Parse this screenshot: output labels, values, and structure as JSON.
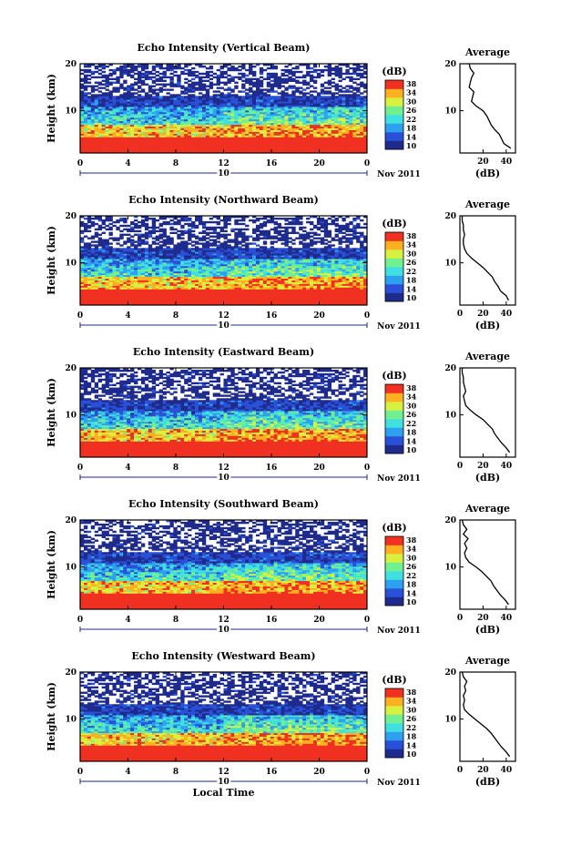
{
  "chart_data": [
    {
      "type": "heatmap",
      "title": "Echo Intensity (Vertical Beam)",
      "ylabel": "Height (km)",
      "y_ticks": [
        "20",
        "10"
      ],
      "x_ticks": [
        "0",
        "4",
        "8",
        "12",
        "16",
        "20",
        "0"
      ],
      "date_day": "10",
      "date_month": "Nov 2011",
      "ylim": [
        1,
        20
      ],
      "xlim": [
        0,
        24
      ],
      "colorbar_unit": "(dB)",
      "colorbar_ticks": [
        "38",
        "34",
        "30",
        "26",
        "22",
        "18",
        "14",
        "10"
      ],
      "zlim": [
        10,
        40
      ],
      "avg_title": "Average",
      "avg_xlabel": "(dB)",
      "avg_x_ticks": [
        "20",
        "40"
      ],
      "avg_y_ticks": [
        "20",
        "10"
      ],
      "avg_profile": {
        "height": [
          2,
          3,
          4,
          5,
          6,
          7,
          8,
          9,
          10,
          11,
          12,
          13,
          14,
          15,
          16,
          17,
          18,
          19,
          20
        ],
        "db": [
          44,
          38,
          36,
          34,
          30,
          27,
          25,
          23,
          20,
          14,
          10,
          11,
          12,
          8,
          9,
          10,
          12,
          9,
          8
        ]
      }
    },
    {
      "type": "heatmap",
      "title": "Echo Intensity (Northward Beam)",
      "ylabel": "Height (km)",
      "y_ticks": [
        "20",
        "10"
      ],
      "x_ticks": [
        "0",
        "4",
        "8",
        "12",
        "16",
        "20",
        "0"
      ],
      "date_day": "10",
      "date_month": "Nov 2011",
      "ylim": [
        1,
        20
      ],
      "xlim": [
        0,
        24
      ],
      "colorbar_unit": "(dB)",
      "colorbar_ticks": [
        "38",
        "34",
        "30",
        "26",
        "22",
        "18",
        "14",
        "10"
      ],
      "zlim": [
        10,
        40
      ],
      "avg_title": "Average",
      "avg_xlabel": "(dB)",
      "avg_x_ticks": [
        "0",
        "20",
        "40"
      ],
      "avg_y_ticks": [
        "20",
        "10"
      ],
      "avg_profile": {
        "height": [
          2,
          3,
          4,
          5,
          6,
          7,
          8,
          9,
          10,
          11,
          12,
          13,
          14,
          15,
          16,
          17,
          18,
          19,
          20
        ],
        "db": [
          42,
          40,
          35,
          33,
          30,
          28,
          24,
          20,
          15,
          10,
          6,
          4,
          3,
          3,
          4,
          3,
          3,
          2,
          2
        ]
      }
    },
    {
      "type": "heatmap",
      "title": "Echo Intensity (Eastward Beam)",
      "ylabel": "Height (km)",
      "y_ticks": [
        "20",
        "10"
      ],
      "x_ticks": [
        "0",
        "4",
        "8",
        "12",
        "16",
        "20",
        "0"
      ],
      "date_day": "10",
      "date_month": "Nov 2011",
      "ylim": [
        1,
        20
      ],
      "xlim": [
        0,
        24
      ],
      "colorbar_unit": "(dB)",
      "colorbar_ticks": [
        "38",
        "34",
        "30",
        "26",
        "22",
        "18",
        "14",
        "10"
      ],
      "zlim": [
        10,
        40
      ],
      "avg_title": "Average",
      "avg_xlabel": "(dB)",
      "avg_x_ticks": [
        "0",
        "20",
        "40"
      ],
      "avg_y_ticks": [
        "20",
        "10"
      ],
      "avg_profile": {
        "height": [
          2,
          3,
          4,
          5,
          6,
          7,
          8,
          9,
          10,
          11,
          12,
          13,
          14,
          15,
          16,
          17,
          18,
          19,
          20
        ],
        "db": [
          43,
          40,
          36,
          33,
          30,
          28,
          24,
          20,
          14,
          9,
          5,
          4,
          3,
          5,
          4,
          3,
          3,
          2,
          2
        ]
      }
    },
    {
      "type": "heatmap",
      "title": "Echo Intensity (Southward Beam)",
      "ylabel": "Height (km)",
      "y_ticks": [
        "20",
        "10"
      ],
      "x_ticks": [
        "0",
        "4",
        "8",
        "12",
        "16",
        "20",
        "0"
      ],
      "date_day": "10",
      "date_month": "Nov 2011",
      "ylim": [
        1,
        20
      ],
      "xlim": [
        0,
        24
      ],
      "colorbar_unit": "(dB)",
      "colorbar_ticks": [
        "38",
        "34",
        "30",
        "26",
        "22",
        "18",
        "14",
        "10"
      ],
      "zlim": [
        10,
        40
      ],
      "avg_title": "Average",
      "avg_xlabel": "(dB)",
      "avg_x_ticks": [
        "0",
        "20",
        "40"
      ],
      "avg_y_ticks": [
        "20",
        "10"
      ],
      "avg_profile": {
        "height": [
          2,
          3,
          4,
          5,
          6,
          7,
          8,
          9,
          10,
          11,
          12,
          13,
          14,
          15,
          16,
          17,
          18,
          19,
          20
        ],
        "db": [
          42,
          39,
          35,
          32,
          29,
          27,
          23,
          19,
          14,
          8,
          5,
          4,
          6,
          4,
          7,
          3,
          6,
          3,
          2
        ]
      }
    },
    {
      "type": "heatmap",
      "title": "Echo Intensity (Westward Beam)",
      "ylabel": "Height (km)",
      "y_ticks": [
        "20",
        "10"
      ],
      "x_ticks": [
        "0",
        "4",
        "8",
        "12",
        "16",
        "20",
        "0"
      ],
      "date_day": "10",
      "date_month": "Nov 2011",
      "xlabel": "Local Time",
      "ylim": [
        1,
        20
      ],
      "xlim": [
        0,
        24
      ],
      "colorbar_unit": "(dB)",
      "colorbar_ticks": [
        "38",
        "34",
        "30",
        "26",
        "22",
        "18",
        "14",
        "10"
      ],
      "zlim": [
        10,
        40
      ],
      "avg_title": "Average",
      "avg_xlabel": "(dB)",
      "avg_x_ticks": [
        "0",
        "20",
        "40"
      ],
      "avg_y_ticks": [
        "20",
        "10"
      ],
      "avg_profile": {
        "height": [
          2,
          3,
          4,
          5,
          6,
          7,
          8,
          9,
          10,
          11,
          12,
          13,
          14,
          15,
          16,
          17,
          18,
          19,
          20
        ],
        "db": [
          43,
          40,
          36,
          33,
          30,
          27,
          23,
          18,
          13,
          8,
          4,
          3,
          4,
          3,
          5,
          4,
          6,
          3,
          2
        ]
      }
    }
  ],
  "colors": {
    "scale": [
      "#1e2a8c",
      "#2a50d8",
      "#2ea0f0",
      "#40e0e0",
      "#70f090",
      "#d8f040",
      "#ffb020",
      "#f03020"
    ]
  }
}
